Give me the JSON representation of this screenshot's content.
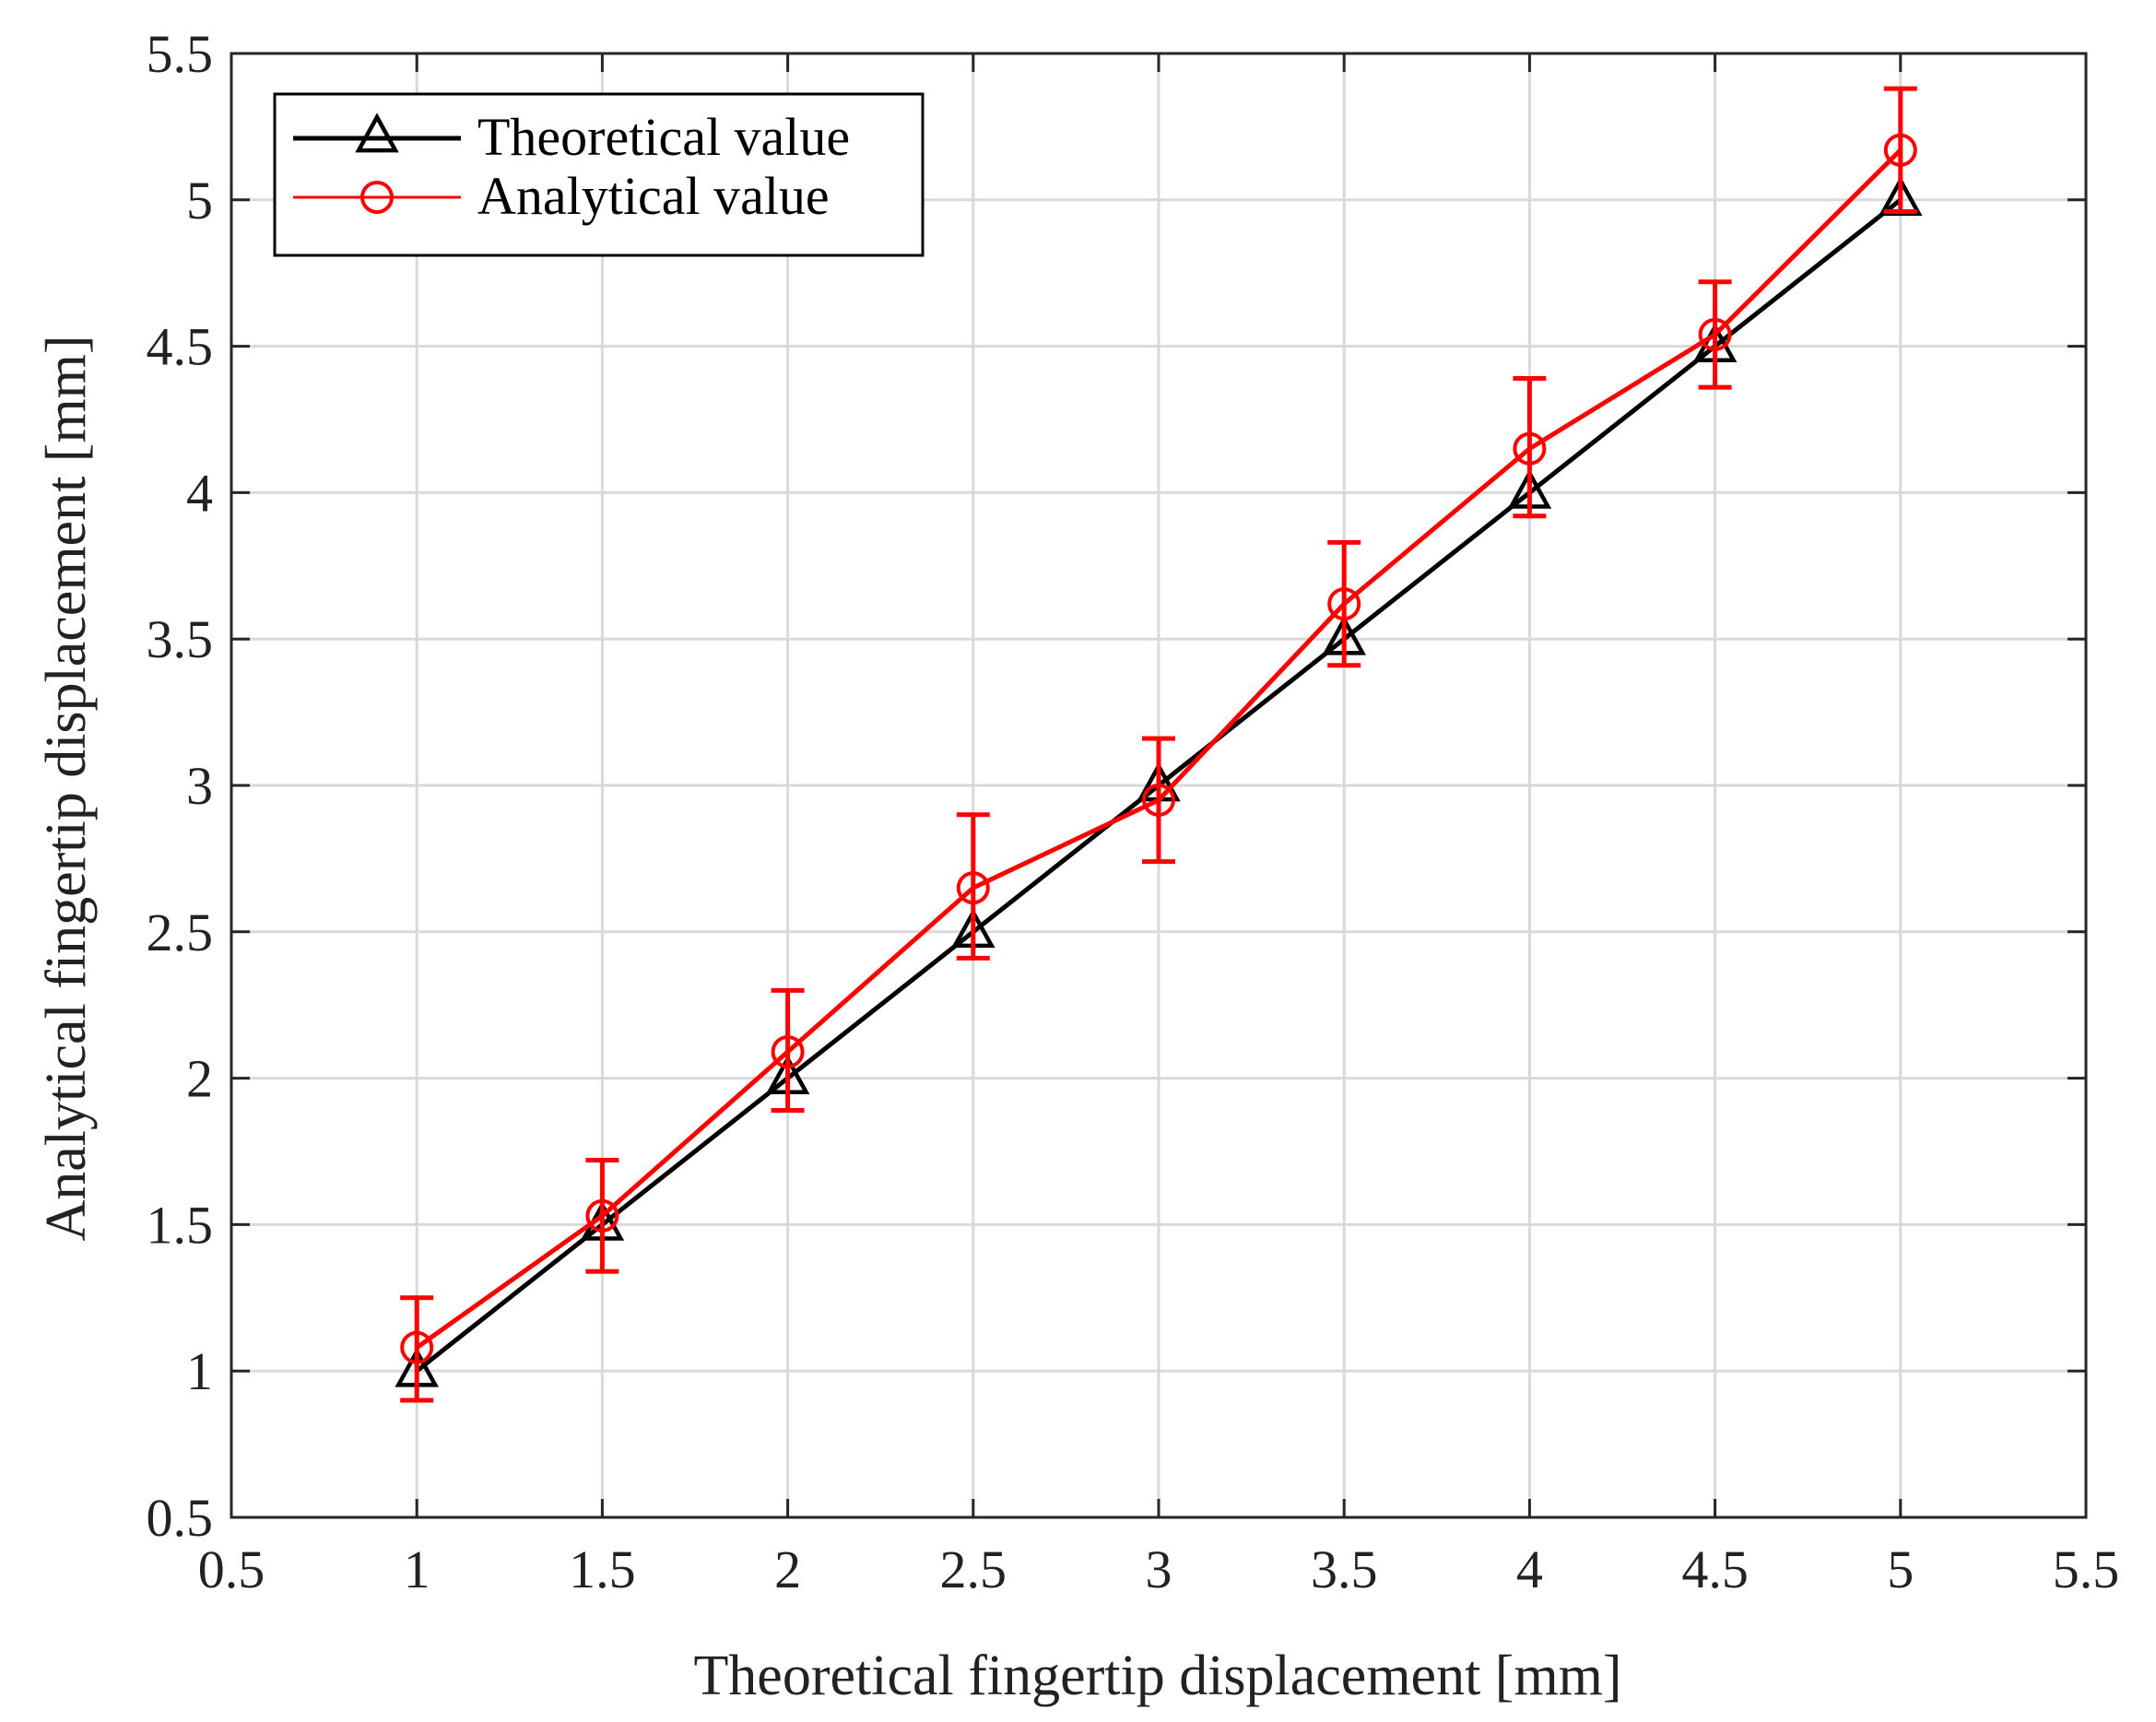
{
  "chart_data": {
    "type": "line",
    "title": "",
    "xlabel": "Theoretical fingertip displacement [mm]",
    "ylabel": "Analytical fingertip displacement [mm]",
    "xlim": [
      0.5,
      5.5
    ],
    "ylim": [
      0.5,
      5.5
    ],
    "xticks": [
      "0.5",
      "1",
      "1.5",
      "2",
      "2.5",
      "3",
      "3.5",
      "4",
      "4.5",
      "5",
      "5.5"
    ],
    "yticks": [
      "0.5",
      "1",
      "1.5",
      "2",
      "2.5",
      "3",
      "3.5",
      "4",
      "4.5",
      "5",
      "5.5"
    ],
    "grid": true,
    "legend_position": "top-left",
    "series": [
      {
        "name": "Theoretical value",
        "color": "#000000",
        "marker": "triangle",
        "x": [
          1,
          1.5,
          2,
          2.5,
          3,
          3.5,
          4,
          4.5,
          5
        ],
        "y": [
          1,
          1.5,
          2,
          2.5,
          3,
          3.5,
          4,
          4.5,
          5
        ]
      },
      {
        "name": "Analytical value",
        "color": "#ff0000",
        "marker": "circle",
        "x": [
          1,
          1.5,
          2,
          2.5,
          3,
          3.5,
          4,
          4.5,
          5
        ],
        "y": [
          1.08,
          1.53,
          2.09,
          2.65,
          2.95,
          3.62,
          4.15,
          4.54,
          5.17
        ],
        "err_low": [
          0.18,
          0.19,
          0.2,
          0.24,
          0.21,
          0.21,
          0.23,
          0.18,
          0.21
        ],
        "err_high": [
          0.17,
          0.19,
          0.21,
          0.25,
          0.21,
          0.21,
          0.24,
          0.18,
          0.21
        ]
      }
    ]
  }
}
